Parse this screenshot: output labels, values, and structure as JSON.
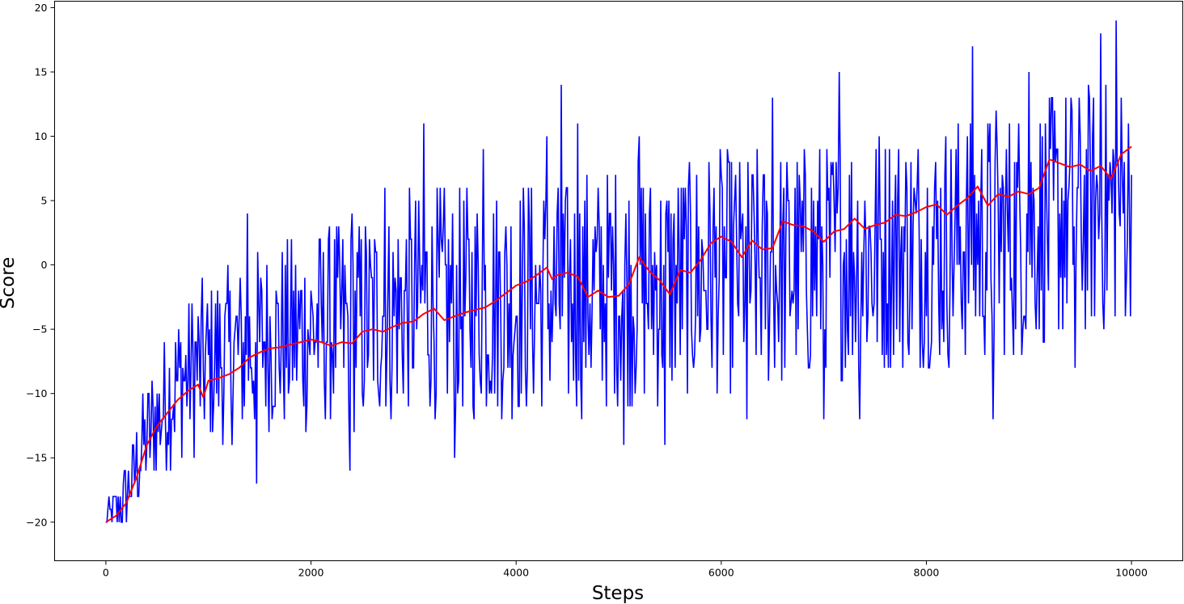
{
  "chart_data": {
    "type": "line",
    "title": "",
    "xlabel": "Steps",
    "ylabel": "Score",
    "xlim": [
      -500,
      10500
    ],
    "ylim": [
      -23,
      20.5
    ],
    "x_ticks": [
      0,
      2000,
      4000,
      6000,
      8000,
      10000
    ],
    "x_tick_labels": [
      "0",
      "2000",
      "4000",
      "6000",
      "8000",
      "10000"
    ],
    "y_ticks": [
      -20,
      -15,
      -10,
      -5,
      0,
      5,
      10,
      15,
      20
    ],
    "y_tick_labels": [
      "−20",
      "−15",
      "−10",
      "−5",
      "0",
      "5",
      "10",
      "15",
      "20"
    ],
    "grid": false,
    "legend": "none",
    "series": [
      {
        "role": "raw",
        "color": "#0000ff",
        "x_range": [
          0,
          10000
        ],
        "min_envelope": [
          [
            0,
            -21
          ],
          [
            50,
            -21
          ],
          [
            100,
            -21
          ],
          [
            200,
            -21
          ],
          [
            300,
            -19
          ],
          [
            400,
            -18
          ],
          [
            500,
            -17
          ],
          [
            600,
            -16
          ],
          [
            700,
            -15
          ],
          [
            800,
            -15
          ],
          [
            1000,
            -14
          ],
          [
            1200,
            -14
          ],
          [
            1500,
            -13
          ],
          [
            2000,
            -13
          ],
          [
            2500,
            -13
          ],
          [
            3000,
            -12
          ],
          [
            3500,
            -12
          ],
          [
            4000,
            -12
          ],
          [
            4500,
            -12
          ],
          [
            5000,
            -11
          ],
          [
            5500,
            -11
          ],
          [
            6000,
            -10
          ],
          [
            6500,
            -10
          ],
          [
            7000,
            -9
          ],
          [
            7500,
            -9
          ],
          [
            8000,
            -8
          ],
          [
            8500,
            -8
          ],
          [
            9000,
            -7
          ],
          [
            9500,
            -6
          ],
          [
            10000,
            -5
          ]
        ],
        "max_envelope": [
          [
            0,
            -19
          ],
          [
            50,
            -18
          ],
          [
            100,
            -17
          ],
          [
            200,
            -15
          ],
          [
            300,
            -12
          ],
          [
            400,
            -9
          ],
          [
            500,
            -7
          ],
          [
            600,
            -5
          ],
          [
            700,
            -3
          ],
          [
            800,
            -2
          ],
          [
            1000,
            -1
          ],
          [
            1200,
            0
          ],
          [
            1500,
            1
          ],
          [
            2000,
            3
          ],
          [
            2500,
            4
          ],
          [
            3000,
            6
          ],
          [
            3500,
            6
          ],
          [
            4000,
            7
          ],
          [
            4500,
            7
          ],
          [
            5000,
            8
          ],
          [
            5500,
            8
          ],
          [
            6000,
            9
          ],
          [
            6500,
            9
          ],
          [
            7000,
            10
          ],
          [
            7500,
            11
          ],
          [
            8000,
            11
          ],
          [
            8500,
            12
          ],
          [
            9000,
            13
          ],
          [
            9500,
            14
          ],
          [
            10000,
            15
          ]
        ],
        "occasional_low_dips": [
          [
            1470,
            -17
          ],
          [
            2380,
            -16
          ],
          [
            3400,
            -15
          ],
          [
            4440,
            -15
          ],
          [
            5050,
            -14
          ],
          [
            5450,
            -14
          ],
          [
            6250,
            -12
          ],
          [
            7000,
            -12
          ],
          [
            7350,
            -12
          ],
          [
            8650,
            -12
          ],
          [
            9000,
            -11
          ],
          [
            9450,
            -8
          ]
        ],
        "occasional_high_spikes": [
          [
            1380,
            4
          ],
          [
            2400,
            4
          ],
          [
            2720,
            6
          ],
          [
            3100,
            11
          ],
          [
            3680,
            9
          ],
          [
            4300,
            10
          ],
          [
            4440,
            14
          ],
          [
            4600,
            11
          ],
          [
            5200,
            10
          ],
          [
            6500,
            13
          ],
          [
            7150,
            15
          ],
          [
            8450,
            17
          ],
          [
            9000,
            15
          ],
          [
            9700,
            18
          ],
          [
            9850,
            19
          ]
        ]
      },
      {
        "role": "moving-average",
        "color": "#ff0000",
        "points": [
          [
            0,
            -20
          ],
          [
            100,
            -19.5
          ],
          [
            200,
            -18.5
          ],
          [
            300,
            -16.5
          ],
          [
            400,
            -14
          ],
          [
            500,
            -12.5
          ],
          [
            600,
            -11.5
          ],
          [
            700,
            -10.5
          ],
          [
            800,
            -9.8
          ],
          [
            900,
            -9.3
          ],
          [
            950,
            -10.3
          ],
          [
            1000,
            -9
          ],
          [
            1100,
            -8.8
          ],
          [
            1200,
            -8.5
          ],
          [
            1300,
            -8
          ],
          [
            1400,
            -7.2
          ],
          [
            1500,
            -6.8
          ],
          [
            1600,
            -6.5
          ],
          [
            1700,
            -6.4
          ],
          [
            1800,
            -6.2
          ],
          [
            1900,
            -6.0
          ],
          [
            2000,
            -5.8
          ],
          [
            2100,
            -6.0
          ],
          [
            2200,
            -6.3
          ],
          [
            2300,
            -6.0
          ],
          [
            2400,
            -6.1
          ],
          [
            2500,
            -5.2
          ],
          [
            2600,
            -5.0
          ],
          [
            2700,
            -5.2
          ],
          [
            2800,
            -4.8
          ],
          [
            2900,
            -4.5
          ],
          [
            3000,
            -4.4
          ],
          [
            3100,
            -3.8
          ],
          [
            3200,
            -3.4
          ],
          [
            3300,
            -4.3
          ],
          [
            3400,
            -4.0
          ],
          [
            3500,
            -3.7
          ],
          [
            3600,
            -3.5
          ],
          [
            3700,
            -3.3
          ],
          [
            3800,
            -2.8
          ],
          [
            3900,
            -2.2
          ],
          [
            4000,
            -1.6
          ],
          [
            4100,
            -1.3
          ],
          [
            4200,
            -0.8
          ],
          [
            4300,
            -0.2
          ],
          [
            4350,
            -1.1
          ],
          [
            4400,
            -0.8
          ],
          [
            4500,
            -0.6
          ],
          [
            4600,
            -0.9
          ],
          [
            4700,
            -2.5
          ],
          [
            4800,
            -2.0
          ],
          [
            4900,
            -2.5
          ],
          [
            5000,
            -2.4
          ],
          [
            5100,
            -1.5
          ],
          [
            5200,
            0.6
          ],
          [
            5300,
            -0.5
          ],
          [
            5400,
            -1.2
          ],
          [
            5500,
            -2.3
          ],
          [
            5600,
            -0.4
          ],
          [
            5700,
            -0.6
          ],
          [
            5800,
            0.4
          ],
          [
            5900,
            1.7
          ],
          [
            6000,
            2.2
          ],
          [
            6100,
            1.8
          ],
          [
            6200,
            0.6
          ],
          [
            6300,
            1.9
          ],
          [
            6400,
            1.2
          ],
          [
            6500,
            1.3
          ],
          [
            6600,
            3.4
          ],
          [
            6700,
            3.1
          ],
          [
            6800,
            3.0
          ],
          [
            6900,
            2.6
          ],
          [
            7000,
            1.8
          ],
          [
            7100,
            2.6
          ],
          [
            7200,
            2.8
          ],
          [
            7300,
            3.6
          ],
          [
            7400,
            2.8
          ],
          [
            7500,
            3.1
          ],
          [
            7600,
            3.3
          ],
          [
            7700,
            3.9
          ],
          [
            7800,
            3.8
          ],
          [
            7900,
            4.1
          ],
          [
            8000,
            4.5
          ],
          [
            8100,
            4.7
          ],
          [
            8200,
            3.9
          ],
          [
            8300,
            4.6
          ],
          [
            8400,
            5.2
          ],
          [
            8500,
            6.1
          ],
          [
            8600,
            4.6
          ],
          [
            8700,
            5.5
          ],
          [
            8800,
            5.3
          ],
          [
            8900,
            5.7
          ],
          [
            9000,
            5.5
          ],
          [
            9100,
            6.0
          ],
          [
            9200,
            8.2
          ],
          [
            9300,
            7.9
          ],
          [
            9400,
            7.6
          ],
          [
            9500,
            7.8
          ],
          [
            9600,
            7.3
          ],
          [
            9700,
            7.7
          ],
          [
            9800,
            6.7
          ],
          [
            9900,
            8.6
          ],
          [
            10000,
            9.2
          ]
        ]
      }
    ]
  }
}
